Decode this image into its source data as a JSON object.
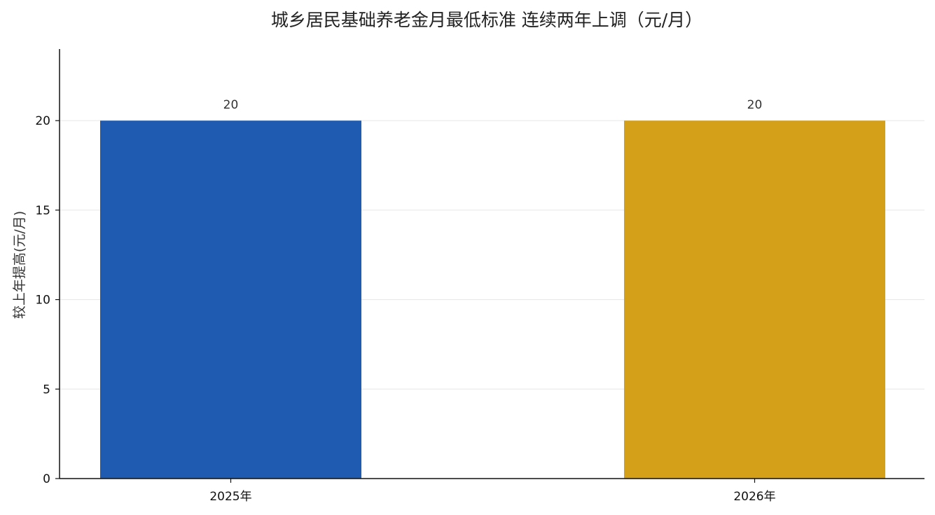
{
  "chart_data": {
    "type": "bar",
    "title": "城乡居民基础养老金月最低标准 连续两年上调（元/月）",
    "xlabel": "",
    "ylabel": "较上年提高(元/月)",
    "categories": [
      "2025年",
      "2026年"
    ],
    "values": [
      20,
      20
    ],
    "data_labels": [
      "20",
      "20"
    ],
    "bar_colors": [
      "#1f5bb0",
      "#d4a01a"
    ],
    "ylim": [
      0,
      24
    ],
    "yticks": [
      0,
      5,
      10,
      15,
      20
    ],
    "ytick_labels": [
      "0",
      "5",
      "10",
      "15",
      "20"
    ],
    "grid": true,
    "legend": "none"
  }
}
